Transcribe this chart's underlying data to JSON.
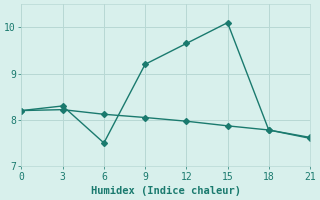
{
  "line1_x": [
    0,
    3,
    6,
    9,
    12,
    15,
    18,
    21
  ],
  "line1_y": [
    8.2,
    8.3,
    7.5,
    9.2,
    9.65,
    10.1,
    7.78,
    7.6
  ],
  "line2_x": [
    0,
    3,
    6,
    9,
    12,
    15,
    18,
    21
  ],
  "line2_y": [
    8.2,
    8.22,
    8.12,
    8.05,
    7.97,
    7.87,
    7.78,
    7.62
  ],
  "line_color": "#1a7a6e",
  "marker": "D",
  "marker_size": 3,
  "xlabel": "Humidex (Indice chaleur)",
  "xlim": [
    0,
    21
  ],
  "ylim": [
    7.0,
    10.5
  ],
  "xticks": [
    0,
    3,
    6,
    9,
    12,
    15,
    18,
    21
  ],
  "yticks": [
    7,
    8,
    9,
    10
  ],
  "background_color": "#d8f0ec",
  "grid_color": "#b8d8d4",
  "font_color": "#1a7a6e",
  "xlabel_fontsize": 7.5,
  "tick_fontsize": 7
}
